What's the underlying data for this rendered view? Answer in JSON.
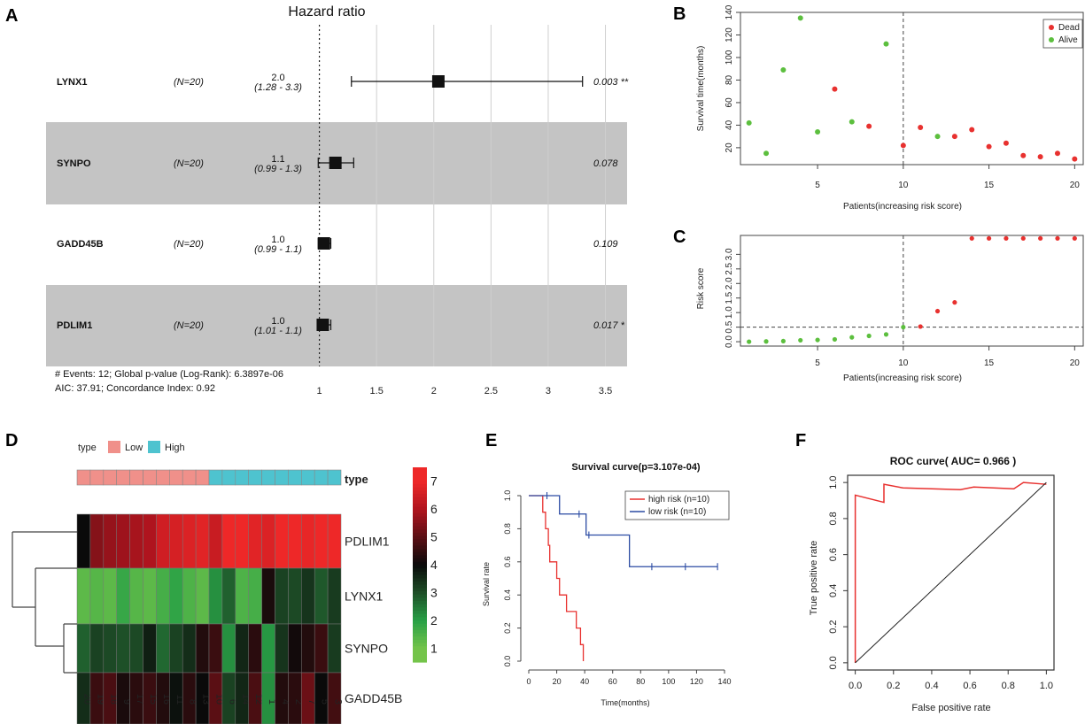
{
  "panel_letters": [
    "A",
    "B",
    "C",
    "D",
    "E",
    "F"
  ],
  "chart_data": [
    {
      "panel": "A",
      "type": "forest",
      "title": "Hazard ratio",
      "rows": [
        {
          "gene": "LYNX1",
          "n": "(N=20)",
          "hr_label": "2.0",
          "ci_label": "(1.28 - 3.3)",
          "p_label": "0.003 **",
          "hr": 2.04,
          "lo": 1.28,
          "hi": 3.3,
          "shaded": false
        },
        {
          "gene": "SYNPO",
          "n": "(N=20)",
          "hr_label": "1.1",
          "ci_label": "(0.99 - 1.3)",
          "p_label": "0.078",
          "hr": 1.14,
          "lo": 0.99,
          "hi": 1.3,
          "shaded": true
        },
        {
          "gene": "GADD45B",
          "n": "(N=20)",
          "hr_label": "1.0",
          "ci_label": "(0.99 - 1.1)",
          "p_label": "0.109",
          "hr": 1.04,
          "lo": 0.99,
          "hi": 1.1,
          "shaded": false
        },
        {
          "gene": "PDLIM1",
          "n": "(N=20)",
          "hr_label": "1.0",
          "ci_label": "(1.01 - 1.1)",
          "p_label": "0.017 *",
          "hr": 1.03,
          "lo": 1.01,
          "hi": 1.1,
          "shaded": true
        }
      ],
      "axis_ticks": [
        "1",
        "1.5",
        "2",
        "2.5",
        "3",
        "3.5"
      ],
      "axis_values": [
        1,
        1.5,
        2,
        2.5,
        3,
        3.5
      ],
      "xlim": [
        0.98,
        3.55
      ],
      "footer_lines": [
        "# Events: 12; Global p-value (Log-Rank): 6.3897e-06",
        "AIC: 37.91; Concordance Index: 0.92"
      ]
    },
    {
      "panel": "B",
      "type": "scatter",
      "xlabel": "Patients(increasing risk score)",
      "ylabel": "Survival time(months)",
      "xlim": [
        0.5,
        20.5
      ],
      "ylim": [
        5,
        140
      ],
      "x_ticks": [
        5,
        10,
        15,
        20
      ],
      "y_ticks": [
        20,
        40,
        60,
        80,
        100,
        120,
        140
      ],
      "cutoff_x": 10,
      "legend": [
        {
          "label": "Dead",
          "color": "#e8312f"
        },
        {
          "label": "Alive",
          "color": "#5cbf3e"
        }
      ],
      "points": [
        {
          "x": 1,
          "y": 42,
          "status": "Alive"
        },
        {
          "x": 2,
          "y": 15,
          "status": "Alive"
        },
        {
          "x": 3,
          "y": 89,
          "status": "Alive"
        },
        {
          "x": 4,
          "y": 135,
          "status": "Alive"
        },
        {
          "x": 5,
          "y": 34,
          "status": "Alive"
        },
        {
          "x": 6,
          "y": 72,
          "status": "Dead"
        },
        {
          "x": 7,
          "y": 43,
          "status": "Alive"
        },
        {
          "x": 8,
          "y": 39,
          "status": "Dead"
        },
        {
          "x": 9,
          "y": 112,
          "status": "Alive"
        },
        {
          "x": 10,
          "y": 22,
          "status": "Dead"
        },
        {
          "x": 11,
          "y": 38,
          "status": "Dead"
        },
        {
          "x": 12,
          "y": 30,
          "status": "Alive"
        },
        {
          "x": 13,
          "y": 30,
          "status": "Dead"
        },
        {
          "x": 14,
          "y": 36,
          "status": "Dead"
        },
        {
          "x": 15,
          "y": 21,
          "status": "Dead"
        },
        {
          "x": 16,
          "y": 24,
          "status": "Dead"
        },
        {
          "x": 17,
          "y": 13,
          "status": "Dead"
        },
        {
          "x": 18,
          "y": 12,
          "status": "Dead"
        },
        {
          "x": 19,
          "y": 15,
          "status": "Dead"
        },
        {
          "x": 20,
          "y": 10,
          "status": "Dead"
        }
      ]
    },
    {
      "panel": "C",
      "type": "scatter",
      "xlabel": "Patients(increasing risk score)",
      "ylabel": "Risk score",
      "xlim": [
        0.5,
        20.5
      ],
      "ylim": [
        -0.15,
        3.65
      ],
      "x_ticks": [
        5,
        10,
        15,
        20
      ],
      "y_ticks": [
        0.0,
        0.5,
        1.0,
        1.5,
        2.0,
        2.5,
        3.0
      ],
      "y_tick_labels": [
        "0.0",
        "0.5",
        "1.0",
        "1.5",
        "2.0",
        "2.5",
        "3.0"
      ],
      "cutoff_x": 10,
      "cutoff_y": 0.5,
      "colors": {
        "low": "#5cbf3e",
        "high": "#e8312f"
      },
      "points": [
        {
          "x": 1,
          "y": 0.0,
          "group": "low"
        },
        {
          "x": 2,
          "y": 0.01,
          "group": "low"
        },
        {
          "x": 3,
          "y": 0.02,
          "group": "low"
        },
        {
          "x": 4,
          "y": 0.05,
          "group": "low"
        },
        {
          "x": 5,
          "y": 0.06,
          "group": "low"
        },
        {
          "x": 6,
          "y": 0.08,
          "group": "low"
        },
        {
          "x": 7,
          "y": 0.15,
          "group": "low"
        },
        {
          "x": 8,
          "y": 0.2,
          "group": "low"
        },
        {
          "x": 9,
          "y": 0.25,
          "group": "low"
        },
        {
          "x": 10,
          "y": 0.5,
          "group": "low"
        },
        {
          "x": 11,
          "y": 0.52,
          "group": "high"
        },
        {
          "x": 12,
          "y": 1.05,
          "group": "high"
        },
        {
          "x": 13,
          "y": 1.35,
          "group": "high"
        },
        {
          "x": 14,
          "y": 3.55,
          "group": "high"
        },
        {
          "x": 15,
          "y": 3.55,
          "group": "high"
        },
        {
          "x": 16,
          "y": 3.55,
          "group": "high"
        },
        {
          "x": 17,
          "y": 3.55,
          "group": "high"
        },
        {
          "x": 18,
          "y": 3.55,
          "group": "high"
        },
        {
          "x": 19,
          "y": 3.55,
          "group": "high"
        },
        {
          "x": 20,
          "y": 3.55,
          "group": "high"
        }
      ]
    },
    {
      "panel": "D",
      "type": "heatmap",
      "legend_title": "type",
      "annotation_label": "type",
      "type_legend": [
        {
          "label": "Low",
          "color": "#f0908a"
        },
        {
          "label": "High",
          "color": "#4ec3cf"
        }
      ],
      "columns": [
        "20",
        "19",
        "18",
        "9",
        "17",
        "15",
        "16",
        "11",
        "8",
        "13",
        "10",
        "6",
        "14",
        "12",
        "1",
        "4",
        "2",
        "7",
        "5",
        "3"
      ],
      "column_types": [
        "Low",
        "Low",
        "Low",
        "Low",
        "Low",
        "Low",
        "Low",
        "Low",
        "Low",
        "Low",
        "High",
        "High",
        "High",
        "High",
        "High",
        "High",
        "High",
        "High",
        "High",
        "High"
      ],
      "rows": [
        "PDLIM1",
        "LYNX1",
        "SYNPO",
        "GADD45B"
      ],
      "values": [
        [
          4.0,
          5.5,
          5.7,
          5.8,
          5.9,
          6.0,
          6.5,
          6.6,
          6.7,
          6.8,
          6.4,
          7.2,
          7.3,
          6.8,
          6.7,
          7.2,
          7.1,
          6.9,
          7.3,
          7.0
        ],
        [
          1.3,
          1.4,
          1.3,
          1.8,
          1.4,
          1.3,
          1.6,
          1.9,
          1.5,
          1.3,
          2.2,
          2.8,
          1.5,
          1.6,
          4.2,
          3.2,
          3.1,
          3.4,
          2.9,
          3.3
        ],
        [
          2.8,
          3.2,
          3.1,
          3.0,
          3.1,
          3.7,
          2.7,
          3.2,
          3.5,
          4.3,
          4.6,
          2.2,
          3.6,
          4.4,
          2.1,
          3.4,
          4.1,
          4.3,
          4.6,
          3.3
        ],
        [
          3.5,
          4.6,
          4.8,
          4.2,
          4.4,
          4.6,
          4.3,
          3.9,
          4.4,
          4.0,
          5.0,
          3.2,
          3.6,
          4.8,
          2.2,
          4.3,
          4.4,
          5.2,
          4.0,
          4.7
        ]
      ],
      "scale_ticks": [
        1,
        2,
        3,
        4,
        5,
        6,
        7
      ],
      "scale_range": [
        0.5,
        7.5
      ]
    },
    {
      "panel": "E",
      "type": "line",
      "title": "Survival curve(p=3.107e-04)",
      "xlabel": "Time(months)",
      "ylabel": "Survival rate",
      "xlim": [
        0,
        140
      ],
      "ylim": [
        0,
        1
      ],
      "x_ticks": [
        0,
        20,
        40,
        60,
        80,
        100,
        120,
        140
      ],
      "y_ticks": [
        0.0,
        0.2,
        0.4,
        0.6,
        0.8,
        1.0
      ],
      "y_tick_labels": [
        "0.0",
        "0.2",
        "0.4",
        "0.6",
        "0.8",
        "1.0"
      ],
      "series": [
        {
          "name": "high risk (n=10)",
          "color": "#e8312f",
          "steps": [
            [
              0,
              1.0
            ],
            [
              10,
              0.9
            ],
            [
              12,
              0.8
            ],
            [
              14,
              0.7
            ],
            [
              15,
              0.6
            ],
            [
              20,
              0.5
            ],
            [
              22,
              0.4
            ],
            [
              27,
              0.3
            ],
            [
              34,
              0.2
            ],
            [
              37,
              0.1
            ],
            [
              39,
              0.0
            ]
          ],
          "censor": []
        },
        {
          "name": "low risk (n=10)",
          "color": "#2b4ba3",
          "steps": [
            [
              0,
              1.0
            ],
            [
              22,
              0.889
            ],
            [
              41,
              0.762
            ],
            [
              72,
              0.571
            ]
          ],
          "censor": [
            [
              13,
              1.0
            ],
            [
              36,
              0.889
            ],
            [
              43,
              0.762
            ],
            [
              88,
              0.571
            ],
            [
              112,
              0.571
            ],
            [
              135,
              0.571
            ]
          ]
        }
      ]
    },
    {
      "panel": "F",
      "type": "line",
      "title": "ROC curve( AUC=  0.966 )",
      "xlabel": "False positive rate",
      "ylabel": "True positive rate",
      "xlim": [
        -0.04,
        1.04
      ],
      "ylim": [
        -0.04,
        1.04
      ],
      "x_ticks": [
        0.0,
        0.2,
        0.4,
        0.6,
        0.8,
        1.0
      ],
      "x_tick_labels": [
        "0.0",
        "0.2",
        "0.4",
        "0.6",
        "0.8",
        "1.0"
      ],
      "y_ticks": [
        0.0,
        0.2,
        0.4,
        0.6,
        0.8,
        1.0
      ],
      "y_tick_labels": [
        "0.0",
        "0.2",
        "0.4",
        "0.6",
        "0.8",
        "1.0"
      ],
      "series": [
        {
          "name": "ROC",
          "color": "#e8312f",
          "points": [
            [
              0,
              0
            ],
            [
              0,
              0.93
            ],
            [
              0.15,
              0.89
            ],
            [
              0.15,
              0.99
            ],
            [
              0.25,
              0.97
            ],
            [
              0.4,
              0.965
            ],
            [
              0.55,
              0.96
            ],
            [
              0.62,
              0.975
            ],
            [
              0.83,
              0.965
            ],
            [
              0.88,
              1.0
            ],
            [
              1.0,
              0.99
            ]
          ]
        },
        {
          "name": "diagonal",
          "color": "#222222",
          "points": [
            [
              0,
              0
            ],
            [
              1,
              1
            ]
          ]
        }
      ]
    }
  ]
}
